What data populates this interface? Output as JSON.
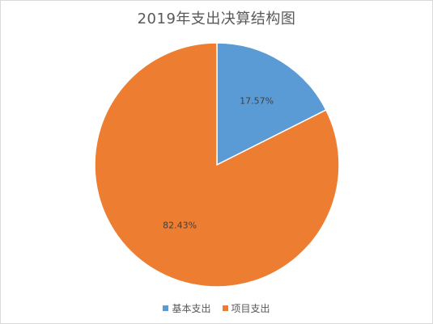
{
  "chart_data": {
    "type": "pie",
    "title": "2019年支出决算结构图",
    "categories": [
      "基本支出",
      "项目支出"
    ],
    "values": [
      17.57,
      82.43
    ],
    "data_labels": [
      "17.57%",
      "82.43%"
    ],
    "colors": [
      "#5b9bd5",
      "#ed7d31"
    ],
    "legend_position": "bottom",
    "start_angle": "12 o'clock, clockwise"
  }
}
